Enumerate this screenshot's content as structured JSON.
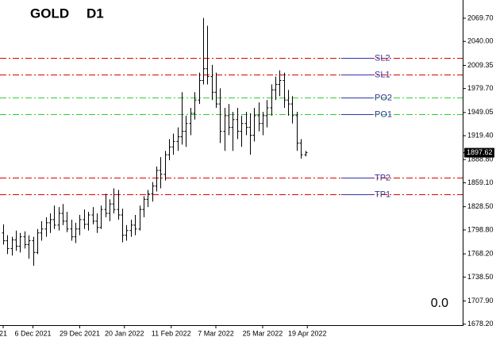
{
  "chart_data": {
    "type": "ohlc",
    "title": "GOLD",
    "subtitle": "D1",
    "corner_text": "0.0",
    "color": "#000000",
    "ylim": [
      1677,
      2093
    ],
    "yticks": [
      {
        "value": 2069.7,
        "label": "2069.70"
      },
      {
        "value": 2040.0,
        "label": "2040.00"
      },
      2009.35,
      {
        "value": 1979.7,
        "label": "1979.70"
      },
      1949.05,
      {
        "value": 1919.4,
        "label": "1919.40"
      },
      {
        "value": 1888.8,
        "label": "1888.80"
      },
      {
        "value": 1859.1,
        "label": "1859.10"
      },
      {
        "value": 1828.5,
        "label": "1828.50"
      },
      {
        "value": 1798.8,
        "label": "1798.80"
      },
      {
        "value": 1768.2,
        "label": "1768.20"
      },
      {
        "value": 1738.5,
        "label": "1738.50"
      },
      {
        "value": 1707.9,
        "label": "1707.90"
      },
      {
        "value": 1678.2,
        "label": "1678.20"
      }
    ],
    "xticks": [
      {
        "value": 0,
        "label": "21"
      },
      {
        "value": 7,
        "label": "6 Dec 2021"
      },
      {
        "value": 18,
        "label": "29 Dec 2021"
      },
      {
        "value": 28.5,
        "label": "20 Jan 2022"
      },
      {
        "value": 39.5,
        "label": "11 Feb 2022"
      },
      {
        "value": 50,
        "label": "7 Mar 2022"
      },
      {
        "value": 61,
        "label": "25 Mar 2022"
      },
      {
        "value": 71.5,
        "label": "19 Apr 2022"
      }
    ],
    "last_price": 1897.62,
    "levels": [
      {
        "name": "SL2",
        "value": 2019,
        "color": "#e00000"
      },
      {
        "name": "SL1",
        "value": 1997.7,
        "color": "#e00000"
      },
      {
        "name": "PO2",
        "value": 1968.3,
        "color": "#33cc33"
      },
      {
        "name": "PO1",
        "value": 1947,
        "color": "#33cc33"
      },
      {
        "name": "TP2",
        "value": 1866,
        "color": "#e00000"
      },
      {
        "name": "TP1",
        "value": 1844.5,
        "color": "#e00000"
      }
    ],
    "open": [
      1795,
      1785,
      1775,
      1786,
      1778,
      1790,
      1780,
      1785,
      1770,
      1795,
      1800,
      1808,
      1812,
      1805,
      1820,
      1810,
      1800,
      1790,
      1800,
      1812,
      1806,
      1818,
      1810,
      1802,
      1825,
      1820,
      1832,
      1825,
      1818,
      1792,
      1798,
      1805,
      1800,
      1825,
      1838,
      1845,
      1855,
      1875,
      1870,
      1895,
      1905,
      1912,
      1918,
      1925,
      1935,
      1948,
      1965,
      1990,
      2005,
      1995,
      1975,
      1960,
      1925,
      1945,
      1930,
      1940,
      1925,
      1935,
      1930,
      1920,
      1945,
      1935,
      1945,
      1955,
      1978,
      1985,
      1990,
      1965,
      1960,
      1945,
      1910,
      1895
    ],
    "high": [
      1806,
      1792,
      1790,
      1798,
      1795,
      1797,
      1792,
      1790,
      1800,
      1810,
      1815,
      1820,
      1830,
      1828,
      1832,
      1822,
      1812,
      1808,
      1818,
      1825,
      1822,
      1828,
      1820,
      1830,
      1845,
      1838,
      1852,
      1850,
      1826,
      1805,
      1812,
      1818,
      1830,
      1842,
      1850,
      1860,
      1880,
      1892,
      1900,
      1915,
      1922,
      1930,
      1975,
      1945,
      1955,
      1975,
      2000,
      2070,
      2060,
      2010,
      2000,
      1980,
      1955,
      1960,
      1950,
      1955,
      1945,
      1950,
      1948,
      1955,
      1962,
      1950,
      1965,
      1985,
      1995,
      2003,
      2000,
      1978,
      1970,
      1950,
      1915,
      1900
    ],
    "low": [
      1780,
      1768,
      1766,
      1772,
      1770,
      1775,
      1762,
      1753,
      1768,
      1785,
      1790,
      1795,
      1800,
      1798,
      1805,
      1796,
      1785,
      1782,
      1792,
      1800,
      1798,
      1806,
      1795,
      1800,
      1815,
      1810,
      1820,
      1812,
      1783,
      1785,
      1790,
      1792,
      1798,
      1815,
      1828,
      1835,
      1848,
      1852,
      1862,
      1888,
      1895,
      1900,
      1908,
      1905,
      1920,
      1940,
      1960,
      1985,
      1985,
      1965,
      1955,
      1910,
      1900,
      1920,
      1900,
      1915,
      1905,
      1920,
      1895,
      1912,
      1925,
      1920,
      1930,
      1945,
      1965,
      1970,
      1955,
      1945,
      1935,
      1900,
      1890,
      1893
    ],
    "close": [
      1785,
      1775,
      1786,
      1778,
      1790,
      1780,
      1785,
      1770,
      1795,
      1800,
      1808,
      1812,
      1805,
      1820,
      1810,
      1800,
      1790,
      1800,
      1812,
      1806,
      1818,
      1810,
      1802,
      1825,
      1820,
      1832,
      1825,
      1818,
      1792,
      1798,
      1805,
      1800,
      1825,
      1838,
      1845,
      1855,
      1875,
      1870,
      1895,
      1905,
      1912,
      1918,
      1925,
      1935,
      1948,
      1965,
      1990,
      2005,
      1995,
      1975,
      1960,
      1925,
      1945,
      1930,
      1940,
      1925,
      1935,
      1930,
      1920,
      1945,
      1935,
      1945,
      1955,
      1978,
      1985,
      1990,
      1965,
      1960,
      1945,
      1910,
      1895,
      1897.62
    ]
  }
}
